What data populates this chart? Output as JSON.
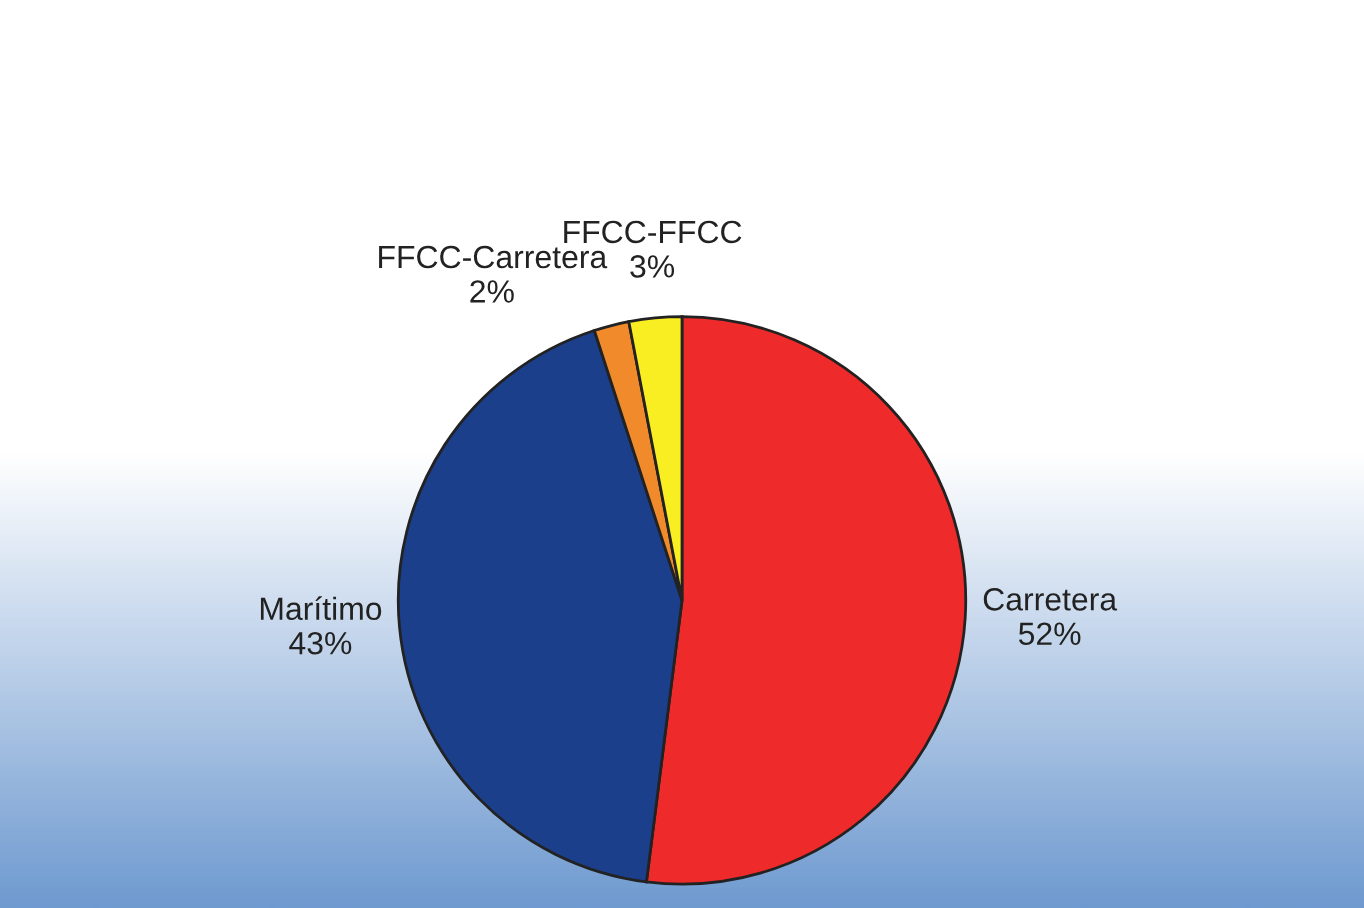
{
  "chart_data": {
    "type": "pie",
    "categories": [
      "Carretera",
      "Marítimo",
      "FFCC-Carretera",
      "FFCC-FFCC"
    ],
    "values": [
      52,
      43,
      2,
      3
    ],
    "value_labels": [
      "52%",
      "43%",
      "2%",
      "3%"
    ],
    "colors": [
      "#ee2a2a",
      "#1c3f8c",
      "#f08a2a",
      "#f8ee22"
    ],
    "legend": false
  }
}
